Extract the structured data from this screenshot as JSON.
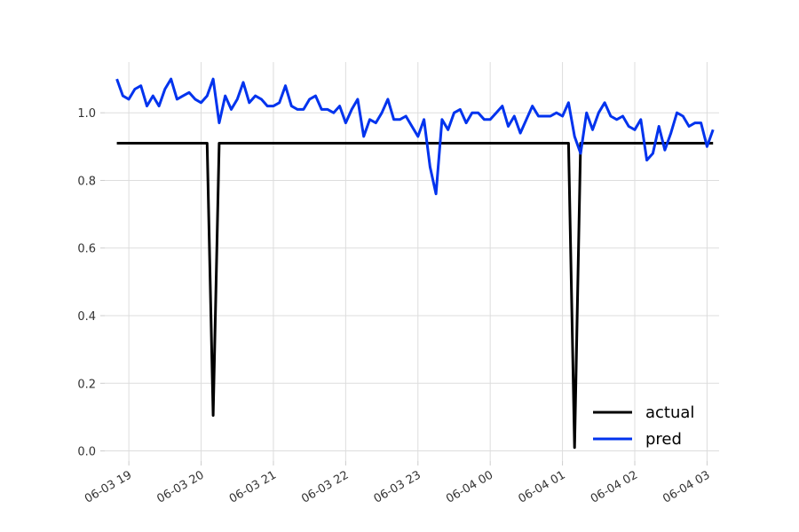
{
  "chart_data": {
    "type": "line",
    "grid": true,
    "legend_position": "bottom-right",
    "xlim": [
      "2025-06-03 18:40",
      "2025-06-04 03:10"
    ],
    "ylim": [
      -0.03,
      1.15
    ],
    "x_ticks": [
      {
        "t": "2025-06-03 19:00",
        "label": "06-03 19"
      },
      {
        "t": "2025-06-03 20:00",
        "label": "06-03 20"
      },
      {
        "t": "2025-06-03 21:00",
        "label": "06-03 21"
      },
      {
        "t": "2025-06-03 22:00",
        "label": "06-03 22"
      },
      {
        "t": "2025-06-03 23:00",
        "label": "06-03 23"
      },
      {
        "t": "2025-06-04 00:00",
        "label": "06-04 00"
      },
      {
        "t": "2025-06-04 01:00",
        "label": "06-04 01"
      },
      {
        "t": "2025-06-04 02:00",
        "label": "06-04 02"
      },
      {
        "t": "2025-06-04 03:00",
        "label": "06-04 03"
      }
    ],
    "y_ticks": [
      "0.0",
      "0.2",
      "0.4",
      "0.6",
      "0.8",
      "1.0"
    ],
    "series": [
      {
        "name": "actual",
        "color": "#000000",
        "points": [
          [
            "2025-06-03 18:50",
            0.91
          ],
          [
            "2025-06-03 20:05",
            0.91
          ],
          [
            "2025-06-03 20:10",
            0.105
          ],
          [
            "2025-06-03 20:15",
            0.91
          ],
          [
            "2025-06-04 01:05",
            0.91
          ],
          [
            "2025-06-04 01:10",
            0.01
          ],
          [
            "2025-06-04 01:15",
            0.91
          ],
          [
            "2025-06-04 03:05",
            0.91
          ]
        ]
      },
      {
        "name": "pred",
        "color": "#0033ee",
        "points": [
          [
            "2025-06-03 18:50",
            1.1
          ],
          [
            "2025-06-03 18:55",
            1.05
          ],
          [
            "2025-06-03 19:00",
            1.04
          ],
          [
            "2025-06-03 19:05",
            1.07
          ],
          [
            "2025-06-03 19:10",
            1.08
          ],
          [
            "2025-06-03 19:15",
            1.02
          ],
          [
            "2025-06-03 19:20",
            1.05
          ],
          [
            "2025-06-03 19:25",
            1.02
          ],
          [
            "2025-06-03 19:30",
            1.07
          ],
          [
            "2025-06-03 19:35",
            1.1
          ],
          [
            "2025-06-03 19:40",
            1.04
          ],
          [
            "2025-06-03 19:45",
            1.05
          ],
          [
            "2025-06-03 19:50",
            1.06
          ],
          [
            "2025-06-03 19:55",
            1.04
          ],
          [
            "2025-06-03 20:00",
            1.03
          ],
          [
            "2025-06-03 20:05",
            1.05
          ],
          [
            "2025-06-03 20:10",
            1.1
          ],
          [
            "2025-06-03 20:15",
            0.97
          ],
          [
            "2025-06-03 20:20",
            1.05
          ],
          [
            "2025-06-03 20:25",
            1.01
          ],
          [
            "2025-06-03 20:30",
            1.04
          ],
          [
            "2025-06-03 20:35",
            1.09
          ],
          [
            "2025-06-03 20:40",
            1.03
          ],
          [
            "2025-06-03 20:45",
            1.05
          ],
          [
            "2025-06-03 20:50",
            1.04
          ],
          [
            "2025-06-03 20:55",
            1.02
          ],
          [
            "2025-06-03 21:00",
            1.02
          ],
          [
            "2025-06-03 21:05",
            1.03
          ],
          [
            "2025-06-03 21:10",
            1.08
          ],
          [
            "2025-06-03 21:15",
            1.02
          ],
          [
            "2025-06-03 21:20",
            1.01
          ],
          [
            "2025-06-03 21:25",
            1.01
          ],
          [
            "2025-06-03 21:30",
            1.04
          ],
          [
            "2025-06-03 21:35",
            1.05
          ],
          [
            "2025-06-03 21:40",
            1.01
          ],
          [
            "2025-06-03 21:45",
            1.01
          ],
          [
            "2025-06-03 21:50",
            1.0
          ],
          [
            "2025-06-03 21:55",
            1.02
          ],
          [
            "2025-06-03 22:00",
            0.97
          ],
          [
            "2025-06-03 22:05",
            1.01
          ],
          [
            "2025-06-03 22:10",
            1.04
          ],
          [
            "2025-06-03 22:15",
            0.93
          ],
          [
            "2025-06-03 22:20",
            0.98
          ],
          [
            "2025-06-03 22:25",
            0.97
          ],
          [
            "2025-06-03 22:30",
            1.0
          ],
          [
            "2025-06-03 22:35",
            1.04
          ],
          [
            "2025-06-03 22:40",
            0.98
          ],
          [
            "2025-06-03 22:45",
            0.98
          ],
          [
            "2025-06-03 22:50",
            0.99
          ],
          [
            "2025-06-03 22:55",
            0.96
          ],
          [
            "2025-06-03 23:00",
            0.93
          ],
          [
            "2025-06-03 23:05",
            0.98
          ],
          [
            "2025-06-03 23:10",
            0.84
          ],
          [
            "2025-06-03 23:15",
            0.76
          ],
          [
            "2025-06-03 23:20",
            0.98
          ],
          [
            "2025-06-03 23:25",
            0.95
          ],
          [
            "2025-06-03 23:30",
            1.0
          ],
          [
            "2025-06-03 23:35",
            1.01
          ],
          [
            "2025-06-03 23:40",
            0.97
          ],
          [
            "2025-06-03 23:45",
            1.0
          ],
          [
            "2025-06-03 23:50",
            1.0
          ],
          [
            "2025-06-03 23:55",
            0.98
          ],
          [
            "2025-06-04 00:00",
            0.98
          ],
          [
            "2025-06-04 00:05",
            1.0
          ],
          [
            "2025-06-04 00:10",
            1.02
          ],
          [
            "2025-06-04 00:15",
            0.96
          ],
          [
            "2025-06-04 00:20",
            0.99
          ],
          [
            "2025-06-04 00:25",
            0.94
          ],
          [
            "2025-06-04 00:30",
            0.98
          ],
          [
            "2025-06-04 00:35",
            1.02
          ],
          [
            "2025-06-04 00:40",
            0.99
          ],
          [
            "2025-06-04 00:45",
            0.99
          ],
          [
            "2025-06-04 00:50",
            0.99
          ],
          [
            "2025-06-04 00:55",
            1.0
          ],
          [
            "2025-06-04 01:00",
            0.99
          ],
          [
            "2025-06-04 01:05",
            1.03
          ],
          [
            "2025-06-04 01:10",
            0.93
          ],
          [
            "2025-06-04 01:15",
            0.88
          ],
          [
            "2025-06-04 01:20",
            1.0
          ],
          [
            "2025-06-04 01:25",
            0.95
          ],
          [
            "2025-06-04 01:30",
            1.0
          ],
          [
            "2025-06-04 01:35",
            1.03
          ],
          [
            "2025-06-04 01:40",
            0.99
          ],
          [
            "2025-06-04 01:45",
            0.98
          ],
          [
            "2025-06-04 01:50",
            0.99
          ],
          [
            "2025-06-04 01:55",
            0.96
          ],
          [
            "2025-06-04 02:00",
            0.95
          ],
          [
            "2025-06-04 02:05",
            0.98
          ],
          [
            "2025-06-04 02:10",
            0.86
          ],
          [
            "2025-06-04 02:15",
            0.88
          ],
          [
            "2025-06-04 02:20",
            0.96
          ],
          [
            "2025-06-04 02:25",
            0.89
          ],
          [
            "2025-06-04 02:30",
            0.94
          ],
          [
            "2025-06-04 02:35",
            1.0
          ],
          [
            "2025-06-04 02:40",
            0.99
          ],
          [
            "2025-06-04 02:45",
            0.96
          ],
          [
            "2025-06-04 02:50",
            0.97
          ],
          [
            "2025-06-04 02:55",
            0.97
          ],
          [
            "2025-06-04 03:00",
            0.9
          ],
          [
            "2025-06-04 03:05",
            0.95
          ]
        ]
      }
    ]
  }
}
